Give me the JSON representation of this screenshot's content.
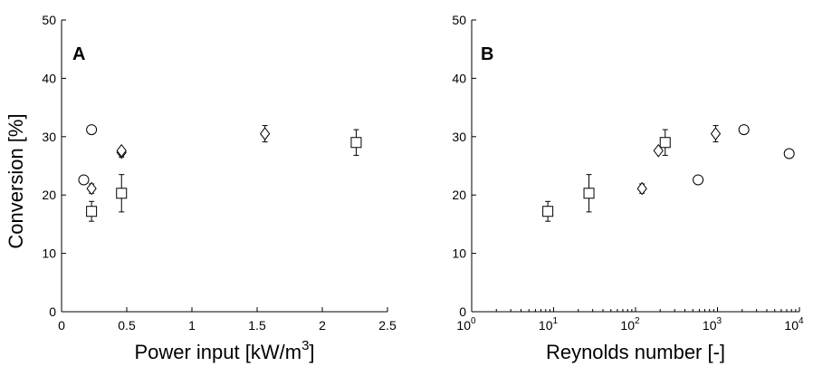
{
  "chart_data": [
    {
      "type": "scatter",
      "panel_label": "A",
      "xlabel_prefix": "Power input [kW/m",
      "xlabel_sup": "3",
      "xlabel_suffix": "]",
      "ylabel": "Conversion [%]",
      "xscale": "linear",
      "xlim": [
        0,
        2.5
      ],
      "ylim": [
        0,
        50
      ],
      "xticks": [
        0,
        0.5,
        1,
        1.5,
        2,
        2.5
      ],
      "xtick_labels": [
        "0",
        "0.5",
        "1",
        "1.5",
        "2",
        "2.5"
      ],
      "yticks": [
        0,
        10,
        20,
        30,
        40,
        50
      ],
      "ytick_labels": [
        "0",
        "10",
        "20",
        "30",
        "40",
        "50"
      ],
      "grid": false,
      "series": [
        {
          "marker": "circle",
          "points": [
            {
              "x": 0.17,
              "y": 22.6
            },
            {
              "x": 0.23,
              "y": 31.2
            }
          ]
        },
        {
          "marker": "square",
          "points": [
            {
              "x": 0.23,
              "y": 17.2,
              "err": 1.7
            },
            {
              "x": 0.46,
              "y": 20.3,
              "err": 3.2
            },
            {
              "x": 2.26,
              "y": 29.0,
              "err": 2.2
            }
          ]
        },
        {
          "marker": "diamond",
          "points": [
            {
              "x": 0.23,
              "y": 21.1,
              "err": 0.8
            },
            {
              "x": 0.46,
              "y": 27.3,
              "err": 0.8
            },
            {
              "x": 0.46,
              "y": 27.6,
              "err": 0.0
            },
            {
              "x": 1.56,
              "y": 30.5,
              "err": 1.4
            }
          ]
        }
      ]
    },
    {
      "type": "scatter",
      "panel_label": "B",
      "xlabel": "Reynolds number [-]",
      "xscale": "log",
      "xlim": [
        1,
        10000
      ],
      "ylim": [
        0,
        50
      ],
      "xticks": [
        1,
        10,
        100,
        1000,
        10000
      ],
      "xtick_labels": [
        {
          "base": "10",
          "exp": "0"
        },
        {
          "base": "10",
          "exp": "1"
        },
        {
          "base": "10",
          "exp": "2"
        },
        {
          "base": "10",
          "exp": "3"
        },
        {
          "base": "10",
          "exp": "4"
        }
      ],
      "yticks": [
        0,
        10,
        20,
        30,
        40,
        50
      ],
      "ytick_labels": [
        "0",
        "10",
        "20",
        "30",
        "40",
        "50"
      ],
      "grid": false,
      "series": [
        {
          "marker": "circle",
          "points": [
            {
              "x": 580,
              "y": 22.6
            },
            {
              "x": 2100,
              "y": 31.2
            },
            {
              "x": 7500,
              "y": 27.1
            }
          ]
        },
        {
          "marker": "square",
          "points": [
            {
              "x": 8.5,
              "y": 17.2,
              "err": 1.7
            },
            {
              "x": 27,
              "y": 20.3,
              "err": 3.2
            },
            {
              "x": 230,
              "y": 29.0,
              "err": 2.2
            }
          ]
        },
        {
          "marker": "diamond",
          "points": [
            {
              "x": 120,
              "y": 21.1,
              "err": 0.8
            },
            {
              "x": 190,
              "y": 27.6,
              "err": 0.0
            },
            {
              "x": 950,
              "y": 30.5,
              "err": 1.4
            }
          ]
        }
      ]
    }
  ]
}
